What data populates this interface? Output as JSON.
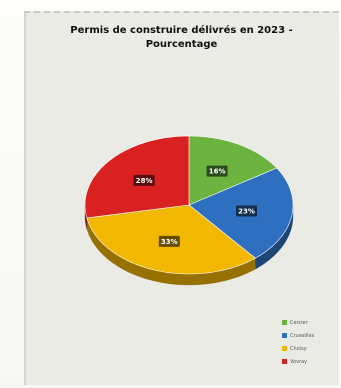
{
  "chart_data": {
    "type": "pie",
    "title": "Permis de construire délivrés en 2023 -",
    "subtitle": "Pourcentage",
    "slices": [
      {
        "label": "Cercier",
        "value": 16,
        "data_label": "16%",
        "color": "#6cb33f"
      },
      {
        "label": "Cruseilles",
        "value": 23,
        "data_label": "23%",
        "color": "#2e6fbf"
      },
      {
        "label": "Choisy",
        "value": 33,
        "data_label": "33%",
        "color": "#f2b701"
      },
      {
        "label": "Vovray",
        "value": 28,
        "data_label": "28%",
        "color": "#d92122"
      }
    ],
    "legend_placement": "bottom-right",
    "style": "3d"
  }
}
